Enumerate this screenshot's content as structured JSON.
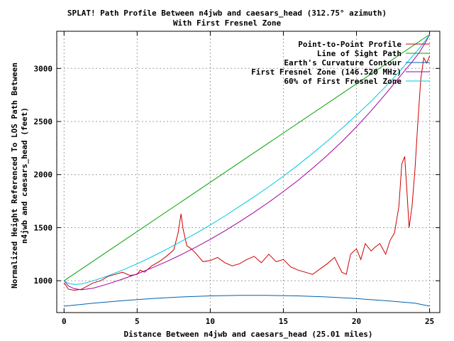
{
  "chart_data": {
    "type": "line",
    "title": "SPLAT! Path Profile Between n4jwb and caesars_head (312.75° azimuth)",
    "subtitle": "With First Fresnel Zone",
    "xlabel": "Distance Between n4jwb and caesars_head (25.01 miles)",
    "ylabel_line1": "Normalized Height Referenced To LOS Path Between",
    "ylabel_line2": "n4jwb and caesars_head (feet)",
    "xlim": [
      -0.5,
      25.7
    ],
    "ylim": [
      700,
      3350
    ],
    "xticks": [
      0,
      5,
      10,
      15,
      20,
      25
    ],
    "yticks": [
      1000,
      1500,
      2000,
      2500,
      3000
    ],
    "grid": true,
    "legend_position": "top-right",
    "series": [
      {
        "name": "Point-to-Point Profile",
        "color": "#cc0000",
        "x": [
          0,
          0.3,
          0.7,
          1.2,
          1.6,
          2.0,
          2.5,
          3.0,
          3.5,
          4.0,
          4.5,
          5.0,
          5.2,
          5.5,
          6.0,
          6.5,
          7.0,
          7.5,
          7.8,
          8.0,
          8.15,
          8.4,
          8.7,
          9.0,
          9.5,
          10.0,
          10.5,
          11.0,
          11.5,
          12.0,
          12.5,
          13.0,
          13.5,
          14.0,
          14.5,
          15.0,
          15.5,
          16.0,
          16.5,
          17.0,
          17.5,
          18.0,
          18.5,
          19.0,
          19.3,
          19.6,
          20.0,
          20.3,
          20.6,
          21.0,
          21.3,
          21.6,
          22.0,
          22.3,
          22.6,
          22.9,
          23.1,
          23.3,
          23.45,
          23.6,
          23.8,
          24.0,
          24.2,
          24.4,
          24.6,
          24.8,
          25.01
        ],
        "y": [
          980,
          920,
          910,
          920,
          950,
          980,
          1000,
          1040,
          1060,
          1080,
          1050,
          1060,
          1100,
          1080,
          1140,
          1180,
          1230,
          1290,
          1450,
          1630,
          1480,
          1330,
          1300,
          1260,
          1180,
          1190,
          1220,
          1170,
          1140,
          1160,
          1200,
          1230,
          1170,
          1250,
          1180,
          1200,
          1130,
          1100,
          1080,
          1060,
          1110,
          1160,
          1220,
          1080,
          1060,
          1250,
          1300,
          1200,
          1350,
          1280,
          1320,
          1350,
          1250,
          1380,
          1450,
          1700,
          2100,
          2170,
          1850,
          1500,
          1700,
          2050,
          2500,
          2900,
          3100,
          3050,
          3120
        ]
      },
      {
        "name": "Line of Sight Path",
        "color": "#00a000",
        "x": [
          0,
          25.01
        ],
        "y": [
          1000,
          3320
        ]
      },
      {
        "name": "Earth's Curvature Contour",
        "color": "#0060ad",
        "x": [
          0,
          2,
          4,
          6,
          8,
          10,
          12,
          14,
          16,
          18,
          20,
          22,
          24,
          25.01
        ],
        "y": [
          760,
          788,
          812,
          832,
          847,
          857,
          862,
          862,
          857,
          847,
          832,
          812,
          788,
          760
        ]
      },
      {
        "name": "First Fresnel Zone (146.520 MHz)",
        "color": "#a000a0",
        "x": [
          0,
          0.3,
          0.7,
          1.2,
          2,
          3,
          4,
          5,
          6,
          7,
          8,
          9,
          10,
          11,
          12,
          13,
          14,
          15,
          16,
          17,
          18,
          19,
          20,
          21,
          22,
          23,
          23.8,
          24.3,
          24.7,
          25.01
        ],
        "y": [
          1000,
          950,
          925,
          915,
          930,
          970,
          1015,
          1065,
          1120,
          1180,
          1245,
          1315,
          1390,
          1470,
          1555,
          1645,
          1740,
          1840,
          1945,
          2060,
          2180,
          2310,
          2450,
          2600,
          2760,
          2930,
          3060,
          3150,
          3240,
          3320
        ]
      },
      {
        "name": "60% of First Fresnel Zone",
        "color": "#00c8e0",
        "x": [
          0,
          0.3,
          0.7,
          1.2,
          2,
          3,
          4,
          5,
          6,
          7,
          8,
          9,
          10,
          11,
          12,
          13,
          14,
          15,
          16,
          17,
          18,
          19,
          20,
          21,
          22,
          23,
          23.8,
          24.3,
          24.7,
          25.01
        ],
        "y": [
          1000,
          975,
          965,
          970,
          1000,
          1045,
          1100,
          1160,
          1225,
          1295,
          1370,
          1445,
          1525,
          1610,
          1700,
          1790,
          1885,
          1985,
          2090,
          2200,
          2315,
          2435,
          2560,
          2690,
          2830,
          2980,
          3110,
          3190,
          3260,
          3320
        ]
      }
    ]
  }
}
